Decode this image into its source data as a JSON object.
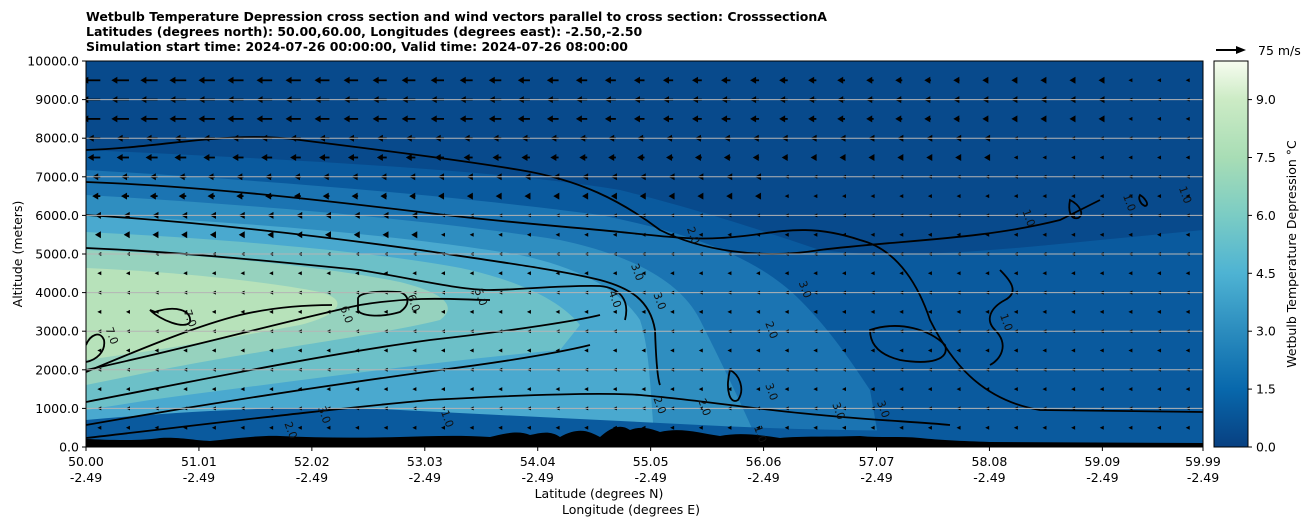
{
  "titles": {
    "line1": "Wetbulb Temperature Depression cross section and wind vectors parallel to cross section: CrosssectionA",
    "line2": "Latitudes (degrees north): 50.00,60.00, Longitudes (degrees east): -2.50,-2.50",
    "line3": "Simulation start time: 2024-07-26 00:00:00, Valid time: 2024-07-26 08:00:00"
  },
  "colors": {
    "low": "#084a8c",
    "mid": "#2f8ec0",
    "midhigh": "#5cb6cd",
    "high": "#a3d9bd",
    "top": "#f6fbec",
    "terrain": "#000000"
  },
  "chart_data": {
    "type": "contour",
    "title": "Wetbulb Temperature Depression cross section and wind vectors parallel to cross section: CrosssectionA",
    "xlabel_lat": "Latitude (degrees N)",
    "xlabel_lon": "Longitude (degrees E)",
    "ylabel": "Altitude (meters)",
    "ylim": [
      0,
      10000
    ],
    "xlim": [
      50.0,
      59.99
    ],
    "x_ticks": [
      {
        "lat": "50.00",
        "lon": "-2.49"
      },
      {
        "lat": "51.01",
        "lon": "-2.49"
      },
      {
        "lat": "52.02",
        "lon": "-2.49"
      },
      {
        "lat": "53.03",
        "lon": "-2.49"
      },
      {
        "lat": "54.04",
        "lon": "-2.49"
      },
      {
        "lat": "55.05",
        "lon": "-2.49"
      },
      {
        "lat": "56.06",
        "lon": "-2.49"
      },
      {
        "lat": "57.07",
        "lon": "-2.49"
      },
      {
        "lat": "58.08",
        "lon": "-2.49"
      },
      {
        "lat": "59.09",
        "lon": "-2.49"
      },
      {
        "lat": "59.99",
        "lon": "-2.49"
      }
    ],
    "y_ticks": [
      "0.0",
      "1000.0",
      "2000.0",
      "3000.0",
      "4000.0",
      "5000.0",
      "6000.0",
      "7000.0",
      "8000.0",
      "9000.0",
      "10000.0"
    ],
    "colorbar": {
      "label": "Wetbulb Temperature Depression °C",
      "min": 0.0,
      "max": 10.0,
      "ticks": [
        "0.0",
        "1.5",
        "3.0",
        "4.5",
        "6.0",
        "7.5",
        "9.0"
      ]
    },
    "wind_key": {
      "label": "75 m/s",
      "value": 75
    },
    "contour_labels": [
      {
        "text": "7.0",
        "lat": 50.2,
        "alt": 2850
      },
      {
        "text": "7.0",
        "lat": 50.9,
        "alt": 3300
      },
      {
        "text": "6.0",
        "lat": 52.3,
        "alt": 3400
      },
      {
        "text": "6.0",
        "lat": 52.9,
        "alt": 3700
      },
      {
        "text": "5.0",
        "lat": 53.5,
        "alt": 3850
      },
      {
        "text": "4.0",
        "lat": 54.7,
        "alt": 3800
      },
      {
        "text": "3.0",
        "lat": 55.1,
        "alt": 3750
      },
      {
        "text": "3.0",
        "lat": 54.9,
        "alt": 4500
      },
      {
        "text": "2.0",
        "lat": 55.4,
        "alt": 5450
      },
      {
        "text": "3.0",
        "lat": 56.4,
        "alt": 4050
      },
      {
        "text": "2.0",
        "lat": 56.1,
        "alt": 3000
      },
      {
        "text": "3.0",
        "lat": 56.1,
        "alt": 1400
      },
      {
        "text": "1.0",
        "lat": 58.4,
        "alt": 5900
      },
      {
        "text": "1.0",
        "lat": 59.3,
        "alt": 6300
      },
      {
        "text": "1.0",
        "lat": 59.8,
        "alt": 6500
      },
      {
        "text": "1.0",
        "lat": 58.2,
        "alt": 3200
      },
      {
        "text": "2.0",
        "lat": 55.5,
        "alt": 1000
      },
      {
        "text": "2.0",
        "lat": 55.1,
        "alt": 1050
      },
      {
        "text": "3.0",
        "lat": 56.7,
        "alt": 900
      },
      {
        "text": "3.0",
        "lat": 57.1,
        "alt": 950
      },
      {
        "text": "1.0",
        "lat": 56.0,
        "alt": 300
      },
      {
        "text": "1.0",
        "lat": 53.2,
        "alt": 700
      },
      {
        "text": "2.0",
        "lat": 51.8,
        "alt": 400
      },
      {
        "text": "3.0",
        "lat": 52.1,
        "alt": 800
      }
    ],
    "wind_row_altitudes": [
      9500,
      9000,
      8500,
      8000,
      7500,
      7000,
      6500,
      6000,
      5500,
      5000,
      4500,
      4000,
      3500,
      3000,
      2500,
      2000,
      1500,
      1000,
      500
    ]
  }
}
